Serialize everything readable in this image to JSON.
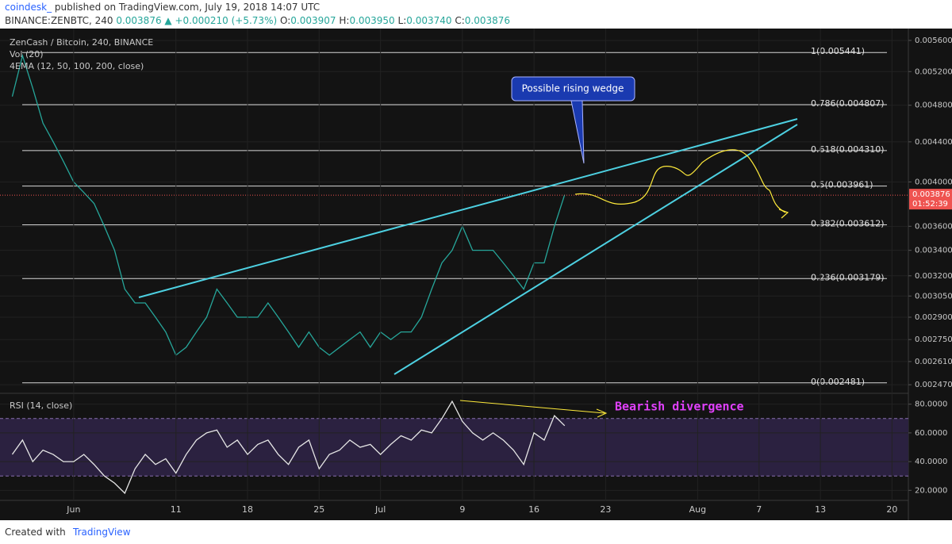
{
  "header": {
    "publisher": "coindesk_",
    "published": "published on TradingView.com, July 19, 2018 14:07 UTC",
    "symbol": "BINANCE:ZENBTC, 240",
    "price": "0.003876",
    "change": "+0.000210 (+5.73%)",
    "ohlc": [
      {
        "label": "O:",
        "value": "0.003907"
      },
      {
        "label": "H:",
        "value": "0.003950"
      },
      {
        "label": "L:",
        "value": "0.003740"
      },
      {
        "label": "C:",
        "value": "0.003876"
      }
    ]
  },
  "footer": {
    "created": "Created with",
    "brand": "TradingView"
  },
  "chart_data": [
    {
      "type": "line",
      "title": "ZenCash / Bitcoin, 240, BINANCE",
      "indicators": [
        "Vol (20)",
        "4EMA (12, 50, 100, 200, close)"
      ],
      "log": true,
      "grid": true,
      "x": [
        -6,
        -5,
        -4,
        -3,
        -2,
        -1,
        0,
        1,
        2,
        3,
        4,
        5,
        6,
        7,
        8,
        9,
        10,
        11,
        12,
        13,
        14,
        15,
        16,
        17,
        18,
        19,
        20,
        21,
        22,
        23,
        24,
        25,
        26,
        27,
        28,
        29,
        30,
        31,
        32,
        33,
        34,
        35,
        36,
        37,
        38,
        39,
        40,
        41,
        42,
        43,
        44,
        45,
        46,
        47,
        48
      ],
      "series": [
        {
          "color": "#26a69a",
          "values": [
            0.0049,
            0.0054,
            0.005,
            0.0046,
            0.0044,
            0.0042,
            0.004,
            0.0039,
            0.0038,
            0.0036,
            0.0034,
            0.0031,
            0.003,
            0.003,
            0.0029,
            0.0028,
            0.00265,
            0.0027,
            0.0028,
            0.0029,
            0.0031,
            0.003,
            0.0029,
            0.0029,
            0.0029,
            0.003,
            0.0029,
            0.0028,
            0.0027,
            0.0028,
            0.0027,
            0.00265,
            0.0027,
            0.00275,
            0.0028,
            0.0027,
            0.0028,
            0.00275,
            0.0028,
            0.0028,
            0.0029,
            0.0031,
            0.0033,
            0.0034,
            0.0036,
            0.0034,
            0.0034,
            0.0034,
            0.0033,
            0.0032,
            0.0031,
            0.0033,
            0.0033,
            0.0036,
            0.00388
          ]
        }
      ],
      "xlim": [
        -7.2,
        81.6
      ],
      "ylim": [
        0.00242,
        0.00576
      ],
      "yticks": [
        {
          "value": 0.0056,
          "label": "0.005600"
        },
        {
          "value": 0.0052,
          "label": "0.005200"
        },
        {
          "value": 0.0048,
          "label": "0.004800"
        },
        {
          "value": 0.0044,
          "label": "0.004400"
        },
        {
          "value": 0.004,
          "label": "0.004000"
        },
        {
          "value": 0.0036,
          "label": "0.003600"
        },
        {
          "value": 0.0034,
          "label": "0.003400"
        },
        {
          "value": 0.0032,
          "label": "0.003200"
        },
        {
          "value": 0.00305,
          "label": "0.003050"
        },
        {
          "value": 0.0029,
          "label": "0.002900"
        },
        {
          "value": 0.00275,
          "label": "0.002750"
        },
        {
          "value": 0.00261,
          "label": "0.002610"
        },
        {
          "value": 0.00247,
          "label": "0.002470"
        }
      ],
      "levels": [
        {
          "value": 0.005441,
          "label": "1(0.005441)"
        },
        {
          "value": 0.004807,
          "label": "0.786(0.004807)"
        },
        {
          "value": 0.00431,
          "label": "0.618(0.004310)"
        },
        {
          "value": 0.003961,
          "label": "0.5(0.003961)"
        },
        {
          "value": 0.003612,
          "label": "0.382(0.003612)"
        },
        {
          "value": 0.003179,
          "label": "0.236(0.003179)"
        },
        {
          "value": 0.002481,
          "label": "0(0.002481)"
        }
      ],
      "last_value": 0.003876,
      "countdown": "01:52:39",
      "annotation": "Possible rising wedge"
    },
    {
      "type": "line",
      "title": "RSI (14, close)",
      "grid": true,
      "x": [
        -6,
        -5,
        -4,
        -3,
        -2,
        -1,
        0,
        1,
        2,
        3,
        4,
        5,
        6,
        7,
        8,
        9,
        10,
        11,
        12,
        13,
        14,
        15,
        16,
        17,
        18,
        19,
        20,
        21,
        22,
        23,
        24,
        25,
        26,
        27,
        28,
        29,
        30,
        31,
        32,
        33,
        34,
        35,
        36,
        37,
        38,
        39,
        40,
        41,
        42,
        43,
        44,
        45,
        46,
        47,
        48
      ],
      "series": [
        {
          "color": "#e6e6e6",
          "values": [
            45,
            55,
            40,
            48,
            45,
            40,
            40,
            45,
            38,
            30,
            25,
            18,
            35,
            45,
            38,
            42,
            32,
            45,
            55,
            60,
            62,
            50,
            55,
            45,
            52,
            55,
            45,
            38,
            50,
            55,
            35,
            45,
            48,
            55,
            50,
            52,
            45,
            52,
            58,
            55,
            62,
            60,
            70,
            82,
            68,
            60,
            55,
            60,
            55,
            48,
            38,
            60,
            55,
            72,
            65
          ]
        }
      ],
      "xlim": [
        -7.2,
        81.6
      ],
      "ylim": [
        13,
        87
      ],
      "band": [
        30,
        70
      ],
      "yticks": [
        {
          "value": 80,
          "label": "80.0000"
        },
        {
          "value": 60,
          "label": "60.0000"
        },
        {
          "value": 40,
          "label": "40.0000"
        },
        {
          "value": 20,
          "label": "20.0000"
        }
      ],
      "xticks": [
        {
          "value": 0,
          "label": "Jun"
        },
        {
          "value": 10,
          "label": "11"
        },
        {
          "value": 17,
          "label": "18"
        },
        {
          "value": 24,
          "label": "25"
        },
        {
          "value": 30,
          "label": "Jul"
        },
        {
          "value": 38,
          "label": "9"
        },
        {
          "value": 45,
          "label": "16"
        },
        {
          "value": 52,
          "label": "23"
        },
        {
          "value": 61,
          "label": "Aug"
        },
        {
          "value": 67,
          "label": "7"
        },
        {
          "value": 73,
          "label": "13"
        },
        {
          "value": 80,
          "label": "20"
        }
      ],
      "annotation": "Bearish divergence"
    }
  ]
}
